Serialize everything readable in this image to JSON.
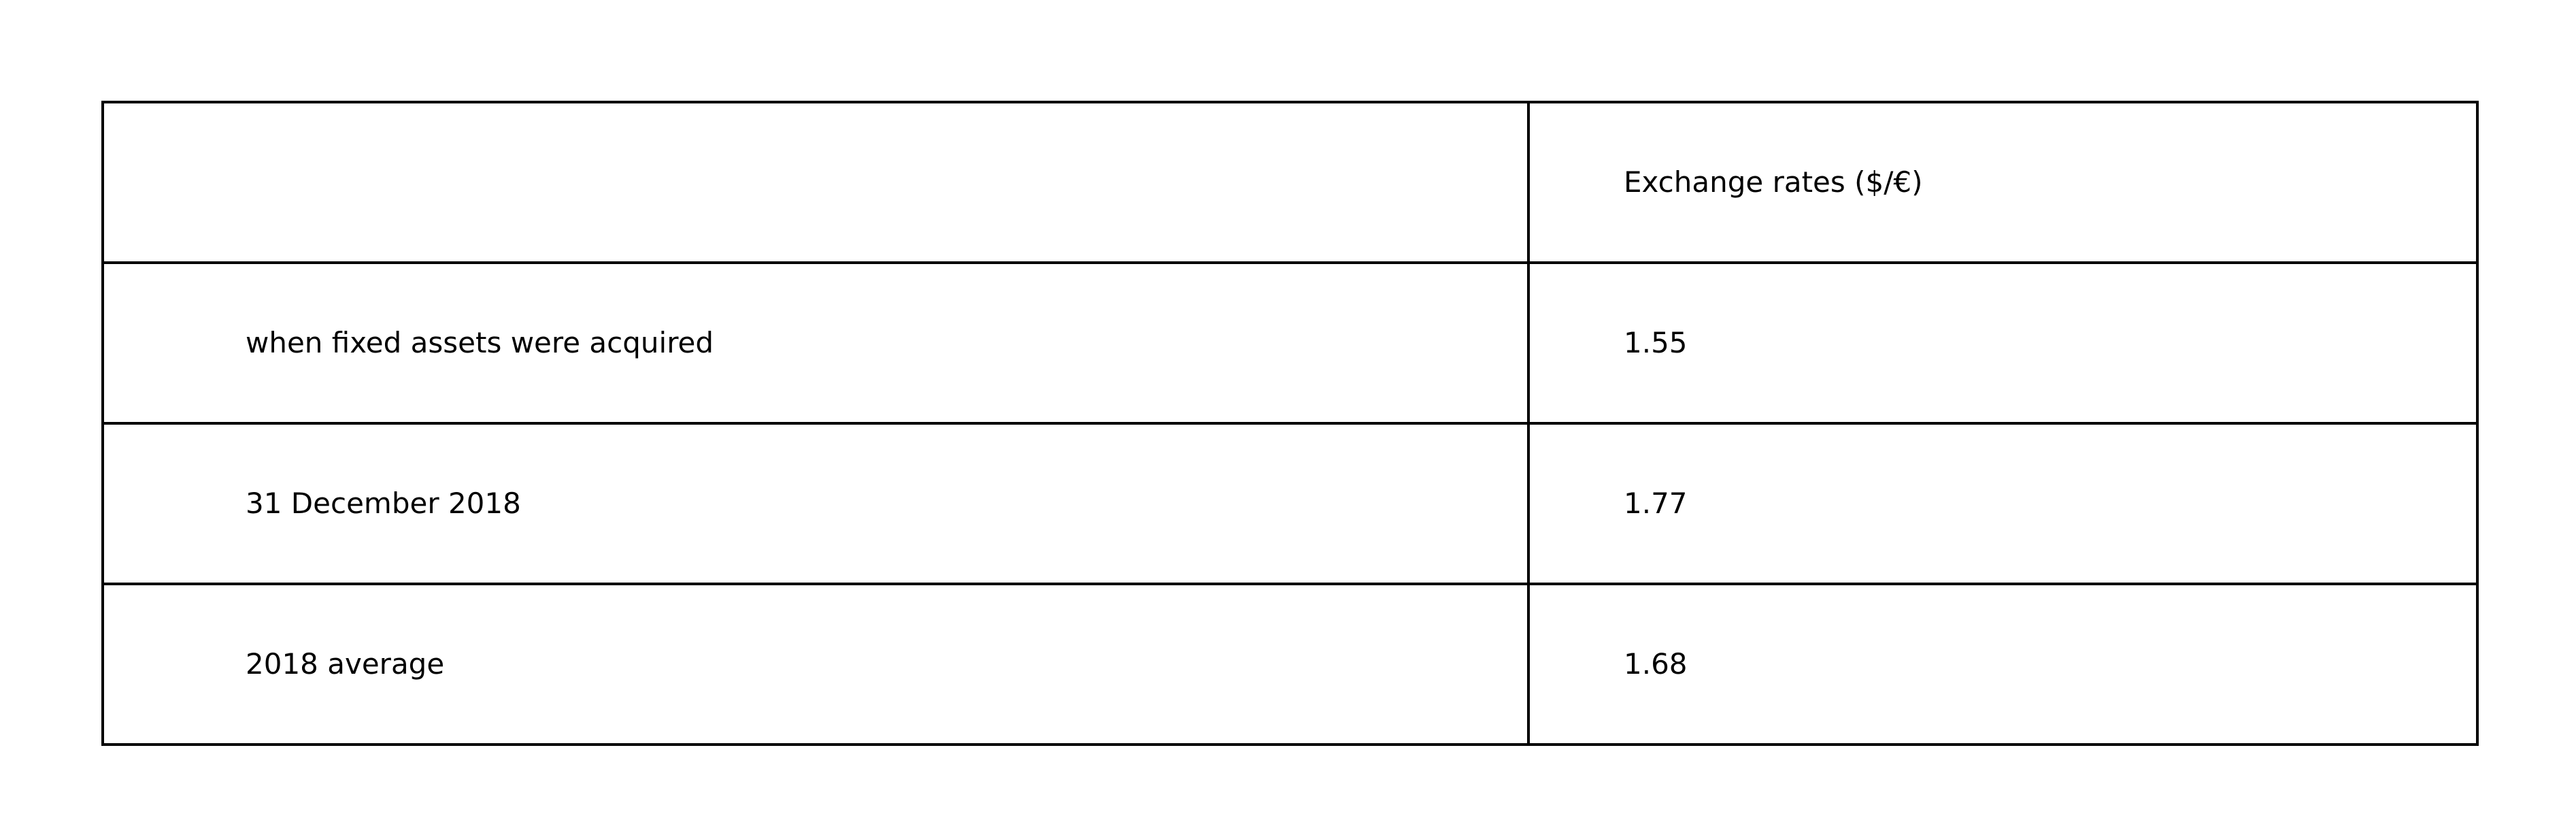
{
  "table": {
    "header": {
      "label": "",
      "value": "Exchange rates ($/€)"
    },
    "rows": [
      {
        "label": "when fixed assets were acquired",
        "value": "1.55"
      },
      {
        "label": "31 December 2018",
        "value": "1.77"
      },
      {
        "label": "2018 average",
        "value": "1.68"
      }
    ]
  }
}
